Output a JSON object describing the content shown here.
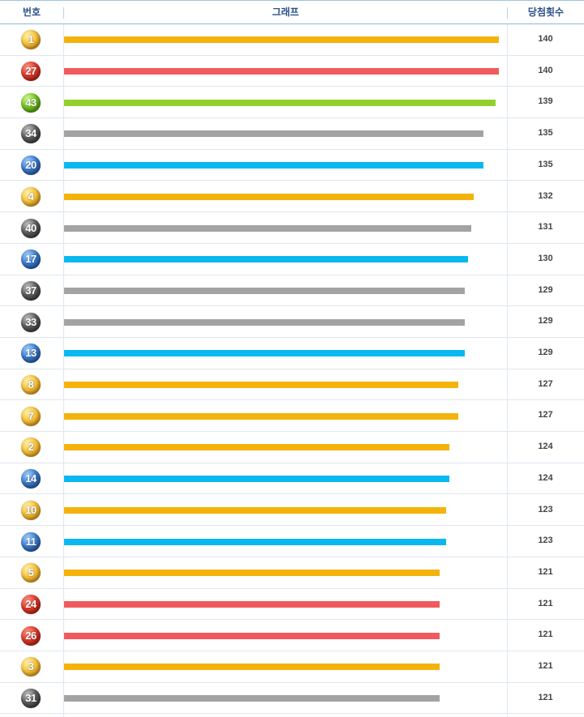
{
  "header": {
    "number": "번호",
    "graph": "그래프",
    "count": "당첨횟수"
  },
  "colors": {
    "yellow": "#f4b30b",
    "red": "#f05a5e",
    "green": "#94d02c",
    "gray": "#a3a3a3",
    "blue": "#08b8ef"
  },
  "chart_data": {
    "type": "bar",
    "orientation": "horizontal",
    "xlabel": "",
    "ylabel": "",
    "xlim": [
      0,
      140
    ],
    "rows": [
      {
        "number": "1",
        "count": 140,
        "color": "yellow"
      },
      {
        "number": "27",
        "count": 140,
        "color": "red"
      },
      {
        "number": "43",
        "count": 139,
        "color": "green"
      },
      {
        "number": "34",
        "count": 135,
        "color": "gray"
      },
      {
        "number": "20",
        "count": 135,
        "color": "blue"
      },
      {
        "number": "4",
        "count": 132,
        "color": "yellow"
      },
      {
        "number": "40",
        "count": 131,
        "color": "gray"
      },
      {
        "number": "17",
        "count": 130,
        "color": "blue"
      },
      {
        "number": "37",
        "count": 129,
        "color": "gray"
      },
      {
        "number": "33",
        "count": 129,
        "color": "gray"
      },
      {
        "number": "13",
        "count": 129,
        "color": "blue"
      },
      {
        "number": "8",
        "count": 127,
        "color": "yellow"
      },
      {
        "number": "7",
        "count": 127,
        "color": "yellow"
      },
      {
        "number": "2",
        "count": 124,
        "color": "yellow"
      },
      {
        "number": "14",
        "count": 124,
        "color": "blue"
      },
      {
        "number": "10",
        "count": 123,
        "color": "yellow"
      },
      {
        "number": "11",
        "count": 123,
        "color": "blue"
      },
      {
        "number": "5",
        "count": 121,
        "color": "yellow"
      },
      {
        "number": "24",
        "count": 121,
        "color": "red"
      },
      {
        "number": "26",
        "count": 121,
        "color": "red"
      },
      {
        "number": "3",
        "count": 121,
        "color": "yellow"
      },
      {
        "number": "31",
        "count": 121,
        "color": "gray"
      }
    ]
  }
}
